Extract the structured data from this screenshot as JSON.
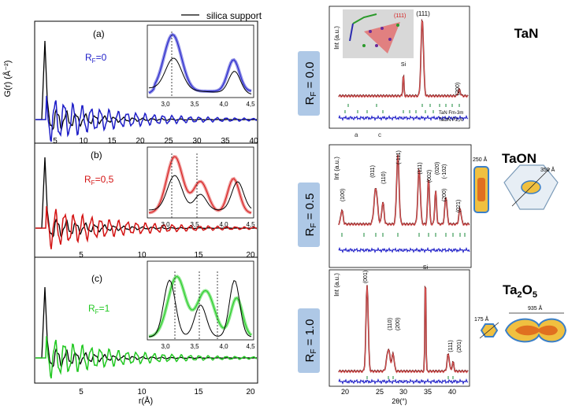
{
  "legend": {
    "label": "silica support"
  },
  "left_panels": {
    "ylabel": "G(r) (Å⁻²)",
    "xlabel": "r(Å)",
    "panels": [
      {
        "letter": "(a)",
        "rf_label": "R",
        "rf_sub": "F",
        "rf_value": "=0",
        "color": "#1f1fc8",
        "light": "#8f8fe6",
        "xticks": [
          "5",
          "10",
          "15",
          "20",
          "25",
          "30",
          "35",
          "40"
        ],
        "inset_xticks": [
          "3,0",
          "3,5",
          "4,0",
          "4,5"
        ]
      },
      {
        "letter": "(b)",
        "rf_label": "R",
        "rf_sub": "F",
        "rf_value": "=0,5",
        "color": "#d41414",
        "light": "#ef9c9c",
        "xticks": [
          "5",
          "10",
          "15",
          "20"
        ],
        "inset_xticks": [
          "3,0",
          "3,5",
          "4,0",
          "4,5"
        ]
      },
      {
        "letter": "(c)",
        "rf_label": "R",
        "rf_sub": "F",
        "rf_value": "=1",
        "color": "#22c822",
        "light": "#8ee88e",
        "xticks": [
          "5",
          "10",
          "15",
          "20"
        ],
        "inset_xticks": [
          "3,0",
          "3,5",
          "4,0",
          "4,5"
        ]
      }
    ]
  },
  "right_panels": [
    {
      "tag": "R",
      "tag_sub": "F",
      "tag_value": " = 0.0",
      "title": "TaN",
      "ylabel": "Int (a.u.)",
      "peaks": [
        "(111)",
        "(200)",
        "Si"
      ],
      "inset_index": "(111)",
      "phase_lines": [
        "TaN Fm-3m",
        "TaON P2₁/c"
      ]
    },
    {
      "tag": "R",
      "tag_sub": "F",
      "tag_value": " = 0.5",
      "title": "TaON",
      "ylabel": "Int (a.u.)",
      "peaks": [
        "(100)",
        "(011)",
        "(110)",
        "(-111)",
        "(111)",
        "(002)",
        "(020)",
        "(-102)",
        "(200)",
        "(021)"
      ],
      "sizes": [
        "250 Å",
        "350 Å"
      ]
    },
    {
      "tag": "R",
      "tag_sub": "F",
      "tag_value": " = 1.0",
      "title_main": "Ta",
      "title_sub": "2",
      "title_end": "O",
      "title_sub2": "5",
      "ylabel": "Int (a.u.)",
      "peaks": [
        "(001)",
        "(110)",
        "(200)",
        "Si",
        "(111)",
        "(201)"
      ],
      "sizes": [
        "175 Å",
        "935 Å"
      ],
      "xticks": [
        "20",
        "25",
        "30",
        "35",
        "40"
      ],
      "xlabel": "2θ(°)"
    }
  ]
}
